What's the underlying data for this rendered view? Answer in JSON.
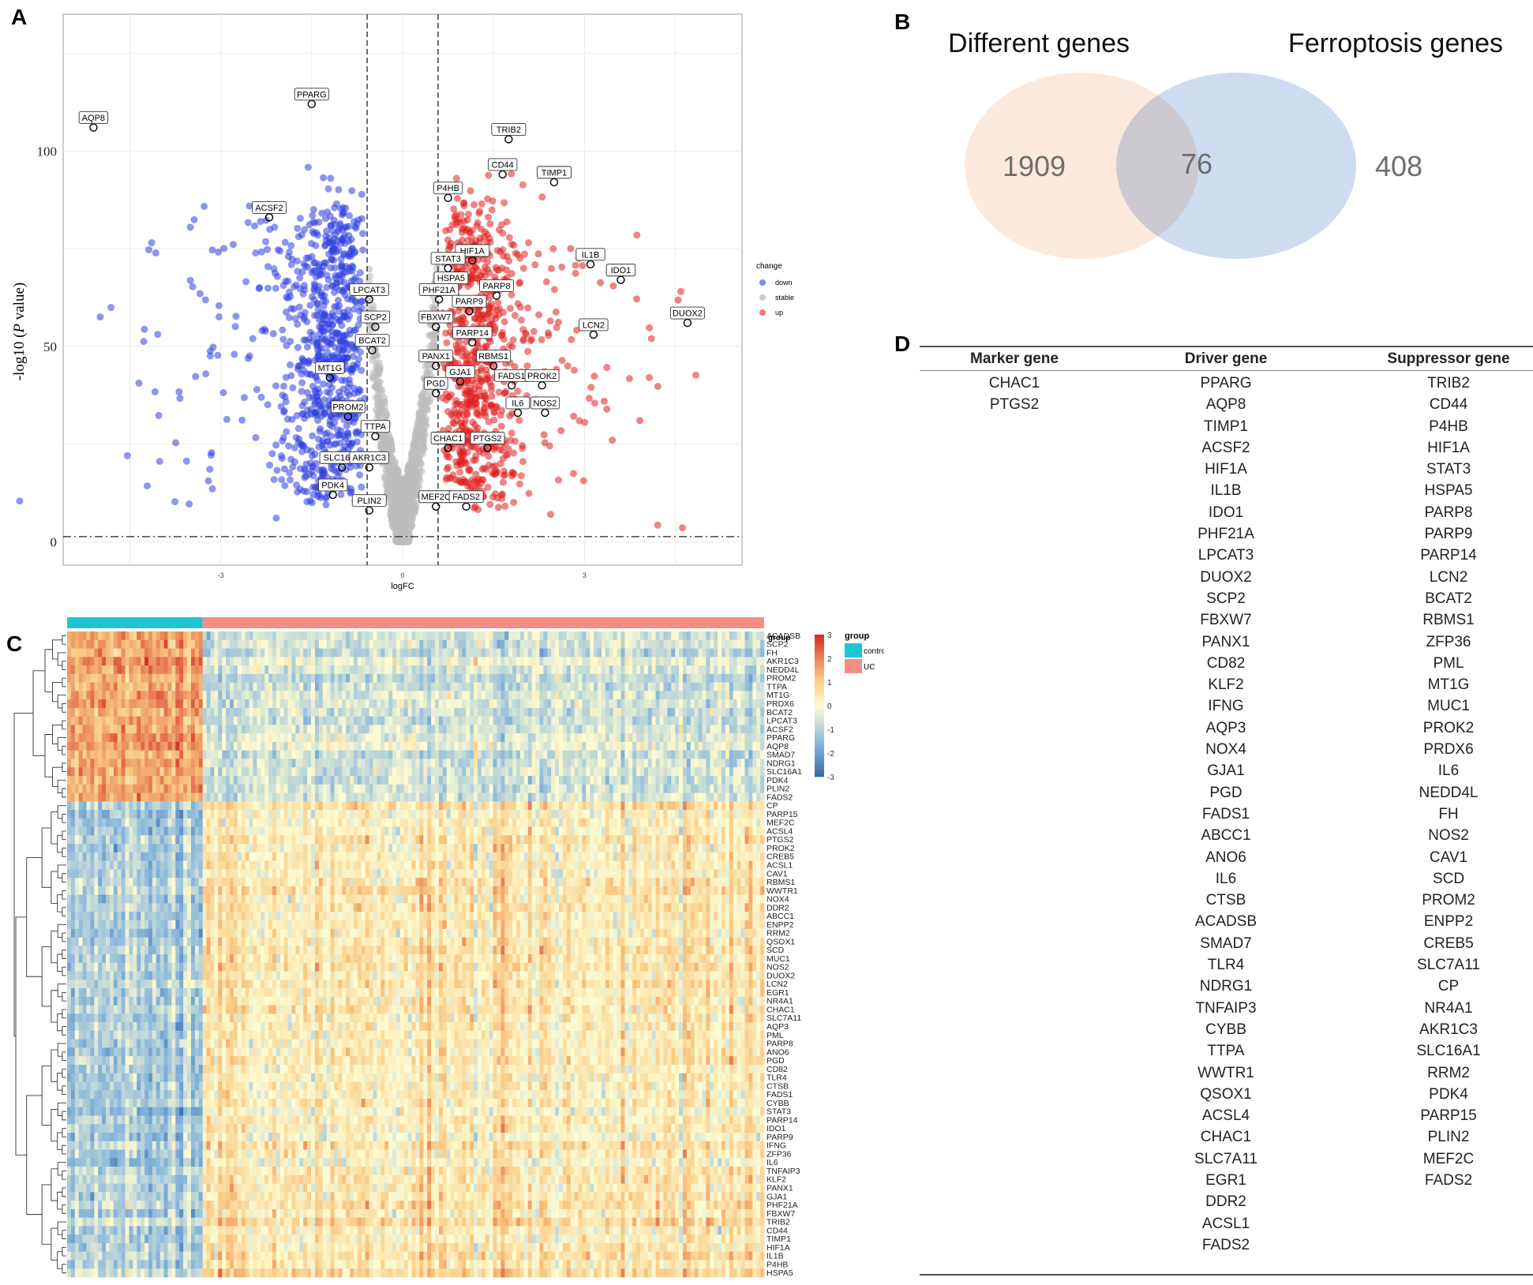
{
  "panels": {
    "a": "A",
    "b": "B",
    "c": "C",
    "d": "D"
  },
  "volcano": {
    "xlabel": "logFC",
    "ylabel_prefix": "-log10 (",
    "ylabel_italic": "P",
    "ylabel_suffix": " value)",
    "xticks": [
      -3,
      0,
      3
    ],
    "yticks": [
      0,
      50,
      100
    ],
    "xlim": [
      -5.6,
      5.6
    ],
    "ylim": [
      -6,
      135
    ],
    "thresholds": {
      "logfc": 0.585,
      "p": 1.3
    },
    "legend": {
      "title": "change",
      "items": [
        {
          "label": "down",
          "color": "#2f3fe0"
        },
        {
          "label": "stable",
          "color": "#bdbdbd"
        },
        {
          "label": "up",
          "color": "#e02020"
        }
      ]
    },
    "labels": [
      {
        "text": "AQP8",
        "x": -5.1,
        "y": 106
      },
      {
        "text": "PPARG",
        "x": -1.5,
        "y": 112
      },
      {
        "text": "ACSF2",
        "x": -2.2,
        "y": 83
      },
      {
        "text": "LPCAT3",
        "x": -0.55,
        "y": 62
      },
      {
        "text": "SCP2",
        "x": -0.45,
        "y": 55
      },
      {
        "text": "BCAT2",
        "x": -0.5,
        "y": 49
      },
      {
        "text": "MT1G",
        "x": -1.2,
        "y": 42
      },
      {
        "text": "PROM2",
        "x": -0.9,
        "y": 32
      },
      {
        "text": "TTPA",
        "x": -0.45,
        "y": 27
      },
      {
        "text": "SLC16A1",
        "x": -1.0,
        "y": 19
      },
      {
        "text": "AKR1C3",
        "x": -0.55,
        "y": 19
      },
      {
        "text": "PDK4",
        "x": -1.15,
        "y": 12
      },
      {
        "text": "PLIN2",
        "x": -0.55,
        "y": 8
      },
      {
        "text": "TRIB2",
        "x": 1.75,
        "y": 103
      },
      {
        "text": "CD44",
        "x": 1.65,
        "y": 94
      },
      {
        "text": "TIMP1",
        "x": 2.5,
        "y": 92
      },
      {
        "text": "P4HB",
        "x": 0.75,
        "y": 88
      },
      {
        "text": "HIF1A",
        "x": 1.15,
        "y": 72
      },
      {
        "text": "IL1B",
        "x": 3.1,
        "y": 71
      },
      {
        "text": "STAT3",
        "x": 0.75,
        "y": 70
      },
      {
        "text": "IDO1",
        "x": 3.6,
        "y": 67
      },
      {
        "text": "HSPA5",
        "x": 0.8,
        "y": 65
      },
      {
        "text": "PHF21A",
        "x": 0.6,
        "y": 62
      },
      {
        "text": "PARP8",
        "x": 1.55,
        "y": 63
      },
      {
        "text": "PARP9",
        "x": 1.1,
        "y": 59
      },
      {
        "text": "FBXW7",
        "x": 0.55,
        "y": 55
      },
      {
        "text": "DUOX2",
        "x": 4.7,
        "y": 56
      },
      {
        "text": "PARP14",
        "x": 1.15,
        "y": 51
      },
      {
        "text": "LCN2",
        "x": 3.15,
        "y": 53
      },
      {
        "text": "PANX1",
        "x": 0.55,
        "y": 45
      },
      {
        "text": "RBMS1",
        "x": 1.5,
        "y": 45
      },
      {
        "text": "GJA1",
        "x": 0.95,
        "y": 41
      },
      {
        "text": "FADS1",
        "x": 1.8,
        "y": 40
      },
      {
        "text": "PROK2",
        "x": 2.3,
        "y": 40
      },
      {
        "text": "PGD",
        "x": 0.55,
        "y": 38
      },
      {
        "text": "IL6",
        "x": 1.9,
        "y": 33
      },
      {
        "text": "NOS2",
        "x": 2.35,
        "y": 33
      },
      {
        "text": "CHAC1",
        "x": 0.75,
        "y": 24
      },
      {
        "text": "PTGS2",
        "x": 1.4,
        "y": 24
      },
      {
        "text": "MEF2C",
        "x": 0.55,
        "y": 9
      },
      {
        "text": "FADS2",
        "x": 1.05,
        "y": 9
      }
    ]
  },
  "venn": {
    "left_title": "Different genes",
    "right_title": "Ferroptosis genes",
    "left_only": "1909",
    "overlap": "76",
    "right_only": "408",
    "left_color": "#fce9dd",
    "right_color": "#cfdcf0"
  },
  "heatmap": {
    "group_label": "group",
    "legend_title": "group",
    "legend_items": [
      {
        "label": "contro",
        "color": "#1fc5d2"
      },
      {
        "label": "UC",
        "color": "#f38d85"
      }
    ],
    "scale_ticks": [
      "3",
      "2",
      "1",
      "0",
      "-1",
      "-2",
      "-3"
    ],
    "control_fraction": 0.193,
    "genes": [
      "ACADSB",
      "SCP2",
      "FH",
      "AKR1C3",
      "NEDD4L",
      "PROM2",
      "TTPA",
      "MT1G",
      "PRDX6",
      "BCAT2",
      "LPCAT3",
      "ACSF2",
      "PPARG",
      "AQP8",
      "SMAD7",
      "NDRG1",
      "SLC16A1",
      "PDK4",
      "PLIN2",
      "FADS2",
      "CP",
      "PARP15",
      "MEF2C",
      "ACSL4",
      "PTGS2",
      "PROK2",
      "CREB5",
      "ACSL1",
      "CAV1",
      "RBMS1",
      "WWTR1",
      "NOX4",
      "DDR2",
      "ABCC1",
      "ENPP2",
      "RRM2",
      "QSOX1",
      "SCD",
      "MUC1",
      "NOS2",
      "DUOX2",
      "LCN2",
      "EGR1",
      "NR4A1",
      "CHAC1",
      "SLC7A11",
      "AQP3",
      "PML",
      "PARP8",
      "ANO6",
      "PGD",
      "CD82",
      "TLR4",
      "CTSB",
      "FADS1",
      "CYBB",
      "STAT3",
      "PARP14",
      "IDO1",
      "PARP9",
      "IFNG",
      "ZFP36",
      "IL6",
      "TNFAIP3",
      "KLF2",
      "PANX1",
      "GJA1",
      "PHF21A",
      "FBXW7",
      "TRIB2",
      "CD44",
      "TIMP1",
      "HIF1A",
      "IL1B",
      "P4HB",
      "HSPA5"
    ],
    "n_down": 20
  },
  "table": {
    "headers": {
      "marker": "Marker gene",
      "driver": "Driver gene",
      "suppressor": "Suppressor gene"
    },
    "marker": [
      "CHAC1",
      "PTGS2"
    ],
    "driver": [
      "PPARG",
      "AQP8",
      "TIMP1",
      "ACSF2",
      "HIF1A",
      "IL1B",
      "IDO1",
      "PHF21A",
      "LPCAT3",
      "DUOX2",
      "SCP2",
      "FBXW7",
      "PANX1",
      "CD82",
      "KLF2",
      "IFNG",
      "AQP3",
      "NOX4",
      "GJA1",
      "PGD",
      "FADS1",
      "ABCC1",
      "ANO6",
      "IL6",
      "CTSB",
      "ACADSB",
      "SMAD7",
      "TLR4",
      "NDRG1",
      "TNFAIP3",
      "CYBB",
      "TTPA",
      "WWTR1",
      "QSOX1",
      "ACSL4",
      "CHAC1",
      "SLC7A11",
      "EGR1",
      "DDR2",
      "ACSL1",
      "FADS2"
    ],
    "suppressor": [
      "TRIB2",
      "CD44",
      "P4HB",
      "HIF1A",
      "STAT3",
      "HSPA5",
      "PARP8",
      "PARP9",
      "PARP14",
      "LCN2",
      "BCAT2",
      "RBMS1",
      "ZFP36",
      "PML",
      "MT1G",
      "MUC1",
      "PROK2",
      "PRDX6",
      "IL6",
      "NEDD4L",
      "FH",
      "NOS2",
      "CAV1",
      "SCD",
      "PROM2",
      "ENPP2",
      "CREB5",
      "SLC7A11",
      "CP",
      "NR4A1",
      "AKR1C3",
      "SLC16A1",
      "RRM2",
      "PDK4",
      "PARP15",
      "PLIN2",
      "MEF2C",
      "FADS2"
    ]
  }
}
